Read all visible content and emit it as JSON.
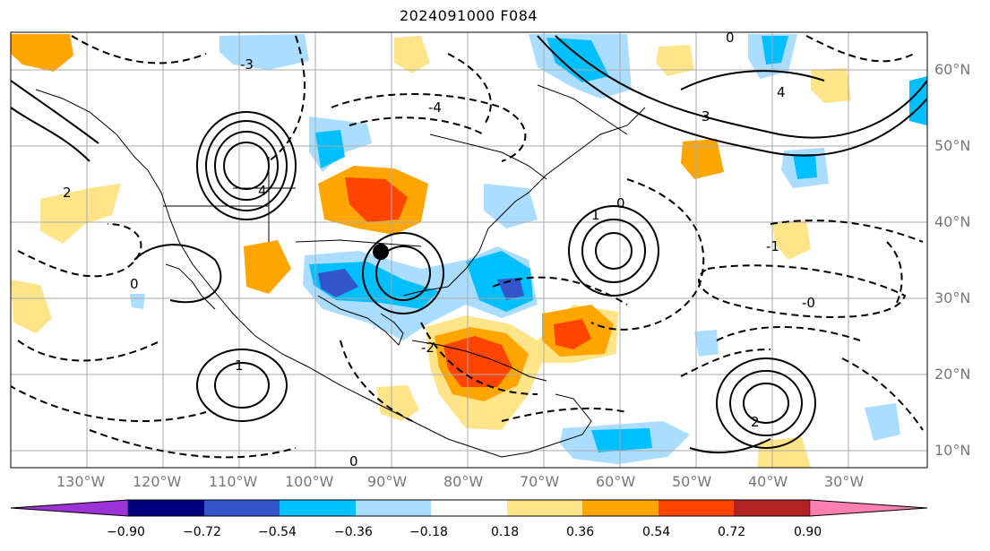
{
  "title": "2024091000 F084",
  "lon_labels": [
    "130°W",
    "120°W",
    "110°W",
    "100°W",
    "90°W",
    "80°W",
    "70°W",
    "60°W",
    "50°W",
    "40°W",
    "30°W"
  ],
  "lat_labels": [
    "60°N",
    "50°N",
    "40°N",
    "30°N",
    "20°N",
    "10°N"
  ],
  "colorbar": {
    "ticks": [
      "−0.90",
      "−0.72",
      "−0.54",
      "−0.36",
      "−0.18",
      "0.18",
      "0.36",
      "0.54",
      "0.72",
      "0.90"
    ],
    "colors": [
      "#9b33d6",
      "#00007f",
      "#3355cc",
      "#00bfff",
      "#aaddff",
      "#ffffff",
      "#ffe48a",
      "#ffa500",
      "#ff4500",
      "#b22222",
      "#ff80b0"
    ]
  },
  "contour_labels": [
    "0",
    "-1",
    "-2",
    "-3",
    "1",
    "2",
    "3",
    "4",
    "-4",
    "-0"
  ],
  "marker": "black-dot",
  "colors": {
    "land_border": "#000000",
    "grid": "#aaaaaa",
    "tick_label": "#777777"
  }
}
